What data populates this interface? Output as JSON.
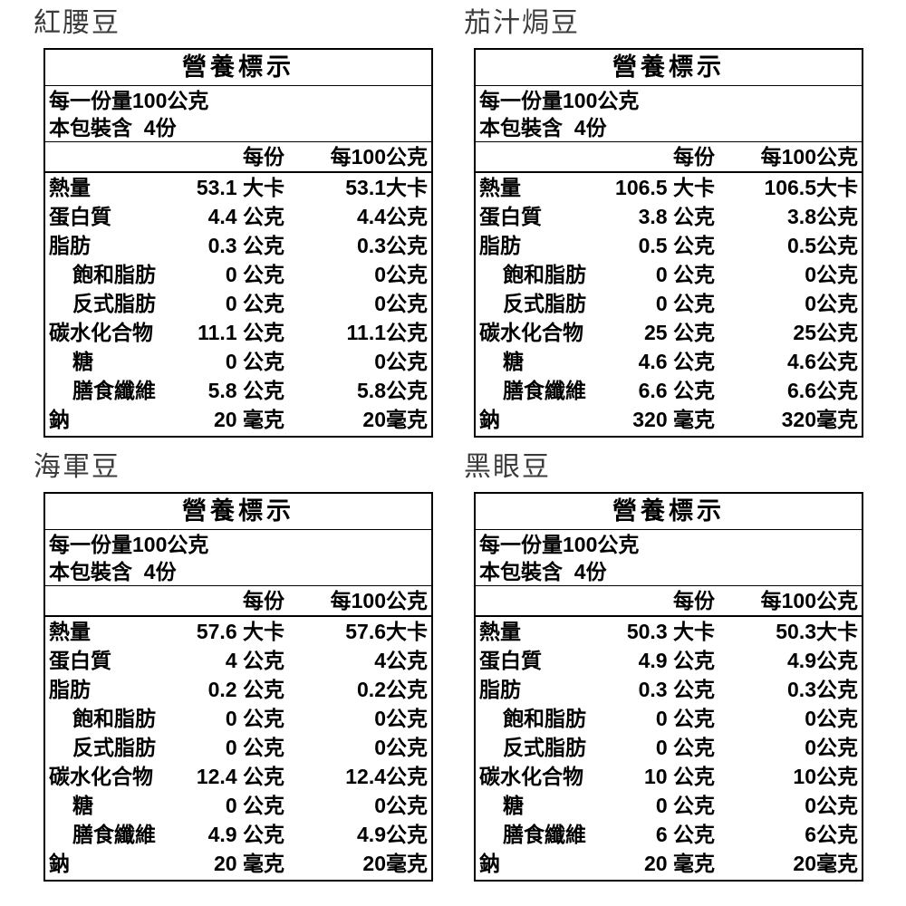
{
  "colors": {
    "background": "#ffffff",
    "text": "#000000",
    "title_gray": "#3b3b3b",
    "border": "#000000"
  },
  "tables": [
    {
      "title": "紅腰豆",
      "header": "營養標示",
      "serving_size": "每一份量100公克",
      "servings_per_pack": "本包裝含  4份",
      "col_per_serving": "每份",
      "col_per_100g": "每100公克",
      "rows": [
        {
          "name": "熱量",
          "indent": false,
          "per_serving": "53.1 大卡",
          "per_100g": "53.1大卡"
        },
        {
          "name": "蛋白質",
          "indent": false,
          "per_serving": "4.4 公克",
          "per_100g": "4.4公克"
        },
        {
          "name": "脂肪",
          "indent": false,
          "per_serving": "0.3 公克",
          "per_100g": "0.3公克"
        },
        {
          "name": "飽和脂肪",
          "indent": true,
          "per_serving": "0 公克",
          "per_100g": "0公克"
        },
        {
          "name": "反式脂肪",
          "indent": true,
          "per_serving": "0 公克",
          "per_100g": "0公克"
        },
        {
          "name": "碳水化合物",
          "indent": false,
          "per_serving": "11.1 公克",
          "per_100g": "11.1公克"
        },
        {
          "name": "糖",
          "indent": true,
          "per_serving": "0 公克",
          "per_100g": "0公克"
        },
        {
          "name": "膳食纖維",
          "indent": true,
          "per_serving": "5.8 公克",
          "per_100g": "5.8公克"
        },
        {
          "name": "鈉",
          "indent": false,
          "per_serving": "20 毫克",
          "per_100g": "20毫克"
        }
      ]
    },
    {
      "title": "茄汁焗豆",
      "header": "營養標示",
      "serving_size": "每一份量100公克",
      "servings_per_pack": "本包裝含  4份",
      "col_per_serving": "每份",
      "col_per_100g": "每100公克",
      "rows": [
        {
          "name": "熱量",
          "indent": false,
          "per_serving": "106.5 大卡",
          "per_100g": "106.5大卡"
        },
        {
          "name": "蛋白質",
          "indent": false,
          "per_serving": "3.8 公克",
          "per_100g": "3.8公克"
        },
        {
          "name": "脂肪",
          "indent": false,
          "per_serving": "0.5 公克",
          "per_100g": "0.5公克"
        },
        {
          "name": "飽和脂肪",
          "indent": true,
          "per_serving": "0 公克",
          "per_100g": "0公克"
        },
        {
          "name": "反式脂肪",
          "indent": true,
          "per_serving": "0 公克",
          "per_100g": "0公克"
        },
        {
          "name": "碳水化合物",
          "indent": false,
          "per_serving": "25 公克",
          "per_100g": "25公克"
        },
        {
          "name": "糖",
          "indent": true,
          "per_serving": "4.6 公克",
          "per_100g": "4.6公克"
        },
        {
          "name": "膳食纖維",
          "indent": true,
          "per_serving": "6.6 公克",
          "per_100g": "6.6公克"
        },
        {
          "name": "鈉",
          "indent": false,
          "per_serving": "320 毫克",
          "per_100g": "320毫克"
        }
      ]
    },
    {
      "title": "海軍豆",
      "header": "營養標示",
      "serving_size": "每一份量100公克",
      "servings_per_pack": "本包裝含  4份",
      "col_per_serving": "每份",
      "col_per_100g": "每100公克",
      "rows": [
        {
          "name": "熱量",
          "indent": false,
          "per_serving": "57.6 大卡",
          "per_100g": "57.6大卡"
        },
        {
          "name": "蛋白質",
          "indent": false,
          "per_serving": "4 公克",
          "per_100g": "4公克"
        },
        {
          "name": "脂肪",
          "indent": false,
          "per_serving": "0.2 公克",
          "per_100g": "0.2公克"
        },
        {
          "name": "飽和脂肪",
          "indent": true,
          "per_serving": "0 公克",
          "per_100g": "0公克"
        },
        {
          "name": "反式脂肪",
          "indent": true,
          "per_serving": "0 公克",
          "per_100g": "0公克"
        },
        {
          "name": "碳水化合物",
          "indent": false,
          "per_serving": "12.4 公克",
          "per_100g": "12.4公克"
        },
        {
          "name": "糖",
          "indent": true,
          "per_serving": "0 公克",
          "per_100g": "0公克"
        },
        {
          "name": "膳食纖維",
          "indent": true,
          "per_serving": "4.9 公克",
          "per_100g": "4.9公克"
        },
        {
          "name": "鈉",
          "indent": false,
          "per_serving": "20 毫克",
          "per_100g": "20毫克"
        }
      ]
    },
    {
      "title": "黑眼豆",
      "header": "營養標示",
      "serving_size": "每一份量100公克",
      "servings_per_pack": "本包裝含  4份",
      "col_per_serving": "每份",
      "col_per_100g": "每100公克",
      "rows": [
        {
          "name": "熱量",
          "indent": false,
          "per_serving": "50.3 大卡",
          "per_100g": "50.3大卡"
        },
        {
          "name": "蛋白質",
          "indent": false,
          "per_serving": "4.9 公克",
          "per_100g": "4.9公克"
        },
        {
          "name": "脂肪",
          "indent": false,
          "per_serving": "0.3 公克",
          "per_100g": "0.3公克"
        },
        {
          "name": "飽和脂肪",
          "indent": true,
          "per_serving": "0 公克",
          "per_100g": "0公克"
        },
        {
          "name": "反式脂肪",
          "indent": true,
          "per_serving": "0 公克",
          "per_100g": "0公克"
        },
        {
          "name": "碳水化合物",
          "indent": false,
          "per_serving": "10 公克",
          "per_100g": "10公克"
        },
        {
          "name": "糖",
          "indent": true,
          "per_serving": "0 公克",
          "per_100g": "0公克"
        },
        {
          "name": "膳食纖維",
          "indent": true,
          "per_serving": "6 公克",
          "per_100g": "6公克"
        },
        {
          "name": "鈉",
          "indent": false,
          "per_serving": "20 毫克",
          "per_100g": "20毫克"
        }
      ]
    }
  ]
}
